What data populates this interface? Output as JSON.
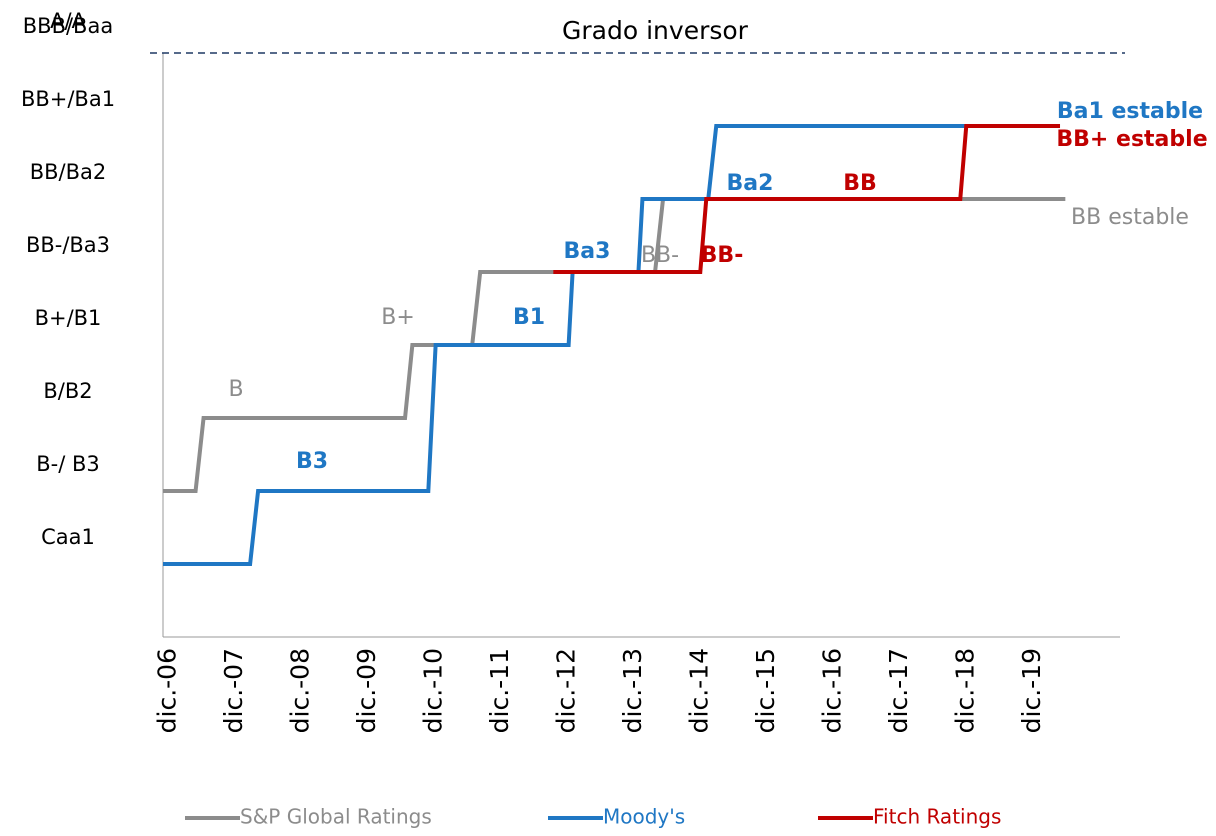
{
  "chart_data": {
    "type": "step-line",
    "reference": {
      "label": "Grado inversor",
      "value": 8
    },
    "xlim": [
      2006.92,
      2020.5
    ],
    "ylim": [
      0,
      9
    ],
    "xticks": [
      {
        "value": 2007,
        "label": "dic.-06"
      },
      {
        "value": 2008,
        "label": "dic.-07"
      },
      {
        "value": 2009,
        "label": "dic.-08"
      },
      {
        "value": 2010,
        "label": "dic.-09"
      },
      {
        "value": 2011,
        "label": "dic.-10"
      },
      {
        "value": 2012,
        "label": "dic.-11"
      },
      {
        "value": 2013,
        "label": "dic.-12"
      },
      {
        "value": 2014,
        "label": "dic.-13"
      },
      {
        "value": 2015,
        "label": "dic.-14"
      },
      {
        "value": 2016,
        "label": "dic.-15"
      },
      {
        "value": 2017,
        "label": "dic.-16"
      },
      {
        "value": 2018,
        "label": "dic.-17"
      },
      {
        "value": 2019,
        "label": "dic.-18"
      },
      {
        "value": 2020,
        "label": "dic.-19"
      }
    ],
    "yticks": [
      {
        "value": 1,
        "label": "Caa1"
      },
      {
        "value": 2,
        "label": "B-/ B3"
      },
      {
        "value": 3,
        "label": "B/B2"
      },
      {
        "value": 4,
        "label": "B+/B1"
      },
      {
        "value": 5,
        "label": "BB-/Ba3"
      },
      {
        "value": 6,
        "label": "BB/Ba2"
      },
      {
        "value": 7,
        "label": "BB+/Ba1"
      },
      {
        "value": 8,
        "label": "BBB/Baa"
      },
      {
        "value": 9,
        "label": "A/A"
      }
    ],
    "series": [
      {
        "name": "S&P Global Ratings",
        "color": "#8c8c8c",
        "x": [
          2006.92,
          2007.41,
          2007.53,
          2010.56,
          2010.67,
          2011.57,
          2011.69,
          2014.32,
          2014.44,
          2020.49
        ],
        "values": [
          2,
          2,
          3,
          3,
          4,
          4,
          5,
          5,
          6,
          6
        ],
        "labels": [
          "B",
          "B+",
          "BB-",
          "BB estable"
        ]
      },
      {
        "name": "Moody's",
        "color": "#1f77c4",
        "x": [
          2006.92,
          2008.23,
          2008.35,
          2010.91,
          2011.02,
          2013.02,
          2013.08,
          2014.07,
          2014.13,
          2015.12,
          2015.24,
          2020.41
        ],
        "values": [
          1,
          1,
          2,
          2,
          4,
          4,
          5,
          5,
          6,
          6,
          7,
          7
        ],
        "labels": [
          "B3",
          "B1",
          "Ba3",
          "Ba2",
          "Ba1 estable"
        ]
      },
      {
        "name": "Fitch Ratings",
        "color": "#c00000",
        "x": [
          2012.79,
          2015.0,
          2015.09,
          2018.91,
          2019.0,
          2020.41
        ],
        "values": [
          5,
          5,
          6,
          6,
          7,
          7
        ],
        "labels": [
          "BB-",
          "BB",
          "BB+ estable"
        ]
      }
    ]
  }
}
